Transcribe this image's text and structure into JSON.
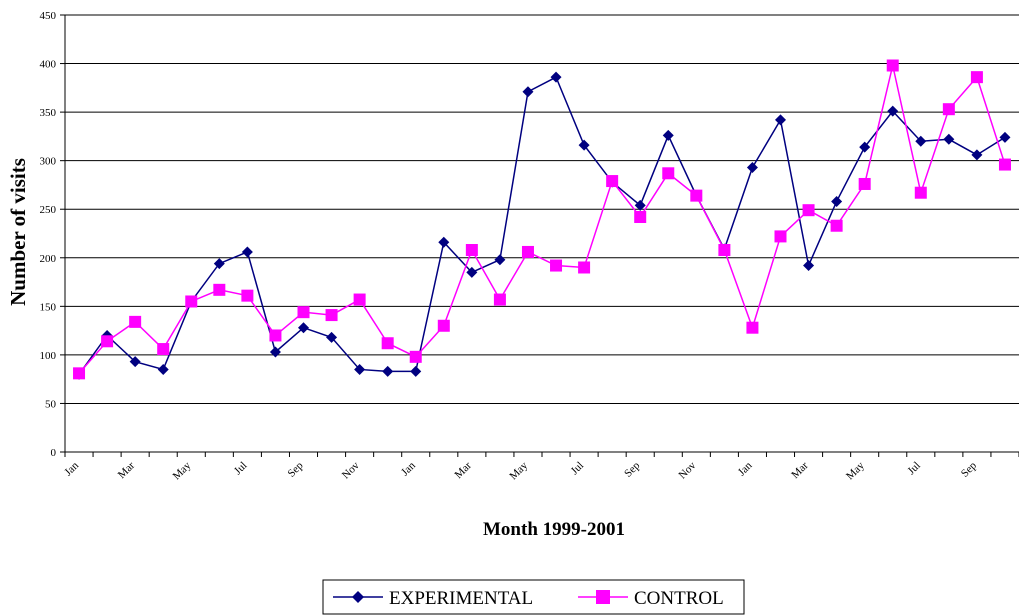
{
  "chart_data": {
    "type": "line",
    "title": "",
    "xlabel": "Month 1999-2001",
    "ylabel": "Number of visits",
    "ylim": [
      0,
      450
    ],
    "y_ticks": [
      0,
      50,
      100,
      150,
      200,
      250,
      300,
      350,
      400,
      450
    ],
    "grid": "horizontal",
    "legend_position": "bottom",
    "x_tick_labels": [
      "Jan",
      "Mar",
      "May",
      "Jul",
      "Sep",
      "Nov",
      "Jan",
      "Mar",
      "May",
      "Jul",
      "Sep",
      "Nov",
      "Jan",
      "Mar",
      "May",
      "Jul",
      "Sep"
    ],
    "series": [
      {
        "name": "EXPERIMENTAL",
        "color": "#000080",
        "marker": "diamond",
        "values": [
          80,
          120,
          93,
          85,
          155,
          194,
          206,
          103,
          128,
          118,
          85,
          83,
          83,
          216,
          185,
          198,
          371,
          386,
          316,
          278,
          254,
          326,
          264,
          209,
          293,
          342,
          192,
          258,
          314,
          351,
          320,
          322,
          306,
          324
        ]
      },
      {
        "name": "CONTROL",
        "color": "#ff00ff",
        "marker": "square",
        "values": [
          81,
          114,
          134,
          106,
          155,
          167,
          161,
          120,
          144,
          141,
          157,
          112,
          98,
          130,
          208,
          157,
          206,
          192,
          190,
          279,
          242,
          287,
          264,
          208,
          128,
          222,
          249,
          233,
          276,
          398,
          267,
          353,
          386,
          296
        ]
      }
    ]
  }
}
